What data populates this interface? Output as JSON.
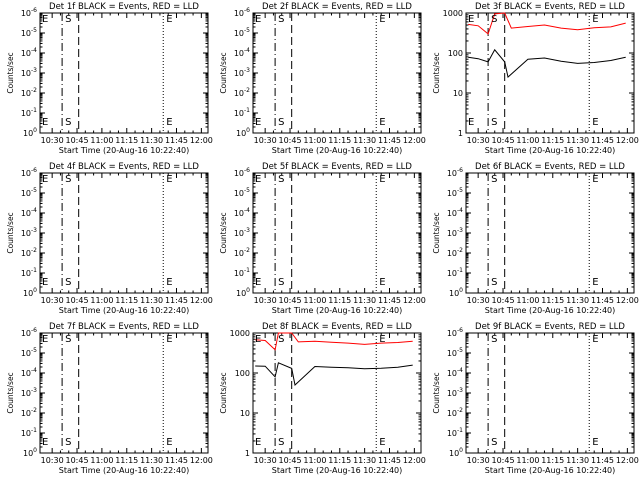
{
  "panel_titles": [
    "Det 1f BLACK = Events, RED = LLD",
    "Det 2f BLACK = Events, RED = LLD",
    "Det 3f BLACK = Events, RED = LLD",
    "Det 4f BLACK = Events, RED = LLD",
    "Det 5f BLACK = Events, RED = LLD",
    "Det 6f BLACK = Events, RED = LLD",
    "Det 7f BLACK = Events, RED = LLD",
    "Det 8f BLACK = Events, RED = LLD",
    "Det 9f BLACK = Events, RED = LLD"
  ],
  "chart_data": [
    {
      "panel": "Det 1f",
      "type": "line",
      "title": "Det 1f BLACK = Events, RED = LLD",
      "xlabel": "Start Time (20-Aug-16 10:22:40)",
      "ylabel": "Counts/sec",
      "yscale": "log",
      "ylim": [
        1,
        1e-06
      ],
      "ytick_labels": [
        "10^0",
        "10^-1",
        "10^-2",
        "10^-3",
        "10^-4",
        "10^-5",
        "10^-6"
      ],
      "xtick_labels": [
        "10:30",
        "10:45",
        "11:00",
        "11:15",
        "11:30",
        "11:45",
        "12:00"
      ],
      "markers": [
        {
          "label": "E",
          "time": "10:22:40"
        },
        {
          "label": "S",
          "time": "10:36"
        },
        {
          "label": "E",
          "time": "11:37"
        }
      ],
      "vlines": [
        {
          "time": "10:36",
          "style": "dash-dot"
        },
        {
          "time": "10:46",
          "style": "dashed"
        },
        {
          "time": "11:37",
          "style": "dotted"
        }
      ],
      "series": []
    },
    {
      "panel": "Det 2f",
      "type": "line",
      "title": "Det 2f BLACK = Events, RED = LLD",
      "xlabel": "Start Time (20-Aug-16 10:22:40)",
      "ylabel": "Counts/sec",
      "yscale": "log",
      "ylim": [
        1,
        1e-06
      ],
      "ytick_labels": [
        "10^0",
        "10^-1",
        "10^-2",
        "10^-3",
        "10^-4",
        "10^-5",
        "10^-6"
      ],
      "xtick_labels": [
        "10:30",
        "10:45",
        "11:00",
        "11:15",
        "11:30",
        "11:45",
        "12:00"
      ],
      "markers": [
        {
          "label": "E",
          "time": "10:22:40"
        },
        {
          "label": "S",
          "time": "10:36"
        },
        {
          "label": "E",
          "time": "11:37"
        }
      ],
      "vlines": [
        {
          "time": "10:36",
          "style": "dash-dot"
        },
        {
          "time": "10:46",
          "style": "dashed"
        },
        {
          "time": "11:37",
          "style": "dotted"
        }
      ],
      "series": []
    },
    {
      "panel": "Det 3f",
      "type": "line",
      "title": "Det 3f BLACK = Events, RED = LLD",
      "xlabel": "Start Time (20-Aug-16 10:22:40)",
      "ylabel": "Counts/sec",
      "yscale": "log",
      "ylim": [
        1,
        1000
      ],
      "ytick_labels": [
        "1",
        "10",
        "100",
        "1000"
      ],
      "xtick_labels": [
        "10:30",
        "10:45",
        "11:00",
        "11:15",
        "11:30",
        "11:45",
        "12:00"
      ],
      "markers": [
        {
          "label": "E",
          "time": "10:22:40"
        },
        {
          "label": "S",
          "time": "10:36"
        },
        {
          "label": "E",
          "time": "11:37"
        }
      ],
      "vlines": [
        {
          "time": "10:36",
          "style": "dash-dot"
        },
        {
          "time": "10:46",
          "style": "dashed"
        },
        {
          "time": "11:37",
          "style": "dotted"
        }
      ],
      "series": [
        {
          "name": "LLD",
          "color": "#ff0000",
          "x": [
            "10:24",
            "10:30",
            "10:36",
            "10:40",
            "10:46",
            "10:50",
            "11:00",
            "11:10",
            "11:20",
            "11:30",
            "11:40",
            "11:50",
            "11:59"
          ],
          "y": [
            520,
            480,
            300,
            950,
            1000,
            420,
            460,
            500,
            420,
            380,
            430,
            450,
            560
          ]
        },
        {
          "name": "Events",
          "color": "#000000",
          "x": [
            "10:24",
            "10:30",
            "10:36",
            "10:40",
            "10:46",
            "10:48",
            "11:00",
            "11:10",
            "11:20",
            "11:30",
            "11:40",
            "11:50",
            "11:59"
          ],
          "y": [
            78,
            72,
            60,
            120,
            60,
            25,
            70,
            75,
            62,
            55,
            58,
            65,
            78
          ]
        }
      ]
    },
    {
      "panel": "Det 4f",
      "type": "line",
      "title": "Det 4f BLACK = Events, RED = LLD",
      "xlabel": "Start Time (20-Aug-16 10:22:40)",
      "ylabel": "Counts/sec",
      "yscale": "log",
      "ylim": [
        1,
        1e-06
      ],
      "ytick_labels": [
        "10^0",
        "10^-1",
        "10^-2",
        "10^-3",
        "10^-4",
        "10^-5",
        "10^-6"
      ],
      "xtick_labels": [
        "10:30",
        "10:45",
        "11:00",
        "11:15",
        "11:30",
        "11:45",
        "12:00"
      ],
      "markers": [
        {
          "label": "E",
          "time": "10:22:40"
        },
        {
          "label": "S",
          "time": "10:36"
        },
        {
          "label": "E",
          "time": "11:37"
        }
      ],
      "vlines": [
        {
          "time": "10:36",
          "style": "dash-dot"
        },
        {
          "time": "10:46",
          "style": "dashed"
        },
        {
          "time": "11:37",
          "style": "dotted"
        }
      ],
      "series": []
    },
    {
      "panel": "Det 5f",
      "type": "line",
      "title": "Det 5f BLACK = Events, RED = LLD",
      "xlabel": "Start Time (20-Aug-16 10:22:40)",
      "ylabel": "Counts/sec",
      "yscale": "log",
      "ylim": [
        1,
        1e-06
      ],
      "ytick_labels": [
        "10^0",
        "10^-1",
        "10^-2",
        "10^-3",
        "10^-4",
        "10^-5",
        "10^-6"
      ],
      "xtick_labels": [
        "10:30",
        "10:45",
        "11:00",
        "11:15",
        "11:30",
        "11:45",
        "12:00"
      ],
      "markers": [
        {
          "label": "E",
          "time": "10:22:40"
        },
        {
          "label": "S",
          "time": "10:36"
        },
        {
          "label": "E",
          "time": "11:37"
        }
      ],
      "vlines": [
        {
          "time": "10:36",
          "style": "dash-dot"
        },
        {
          "time": "10:46",
          "style": "dashed"
        },
        {
          "time": "11:37",
          "style": "dotted"
        }
      ],
      "series": []
    },
    {
      "panel": "Det 6f",
      "type": "line",
      "title": "Det 6f BLACK = Events, RED = LLD",
      "xlabel": "Start Time (20-Aug-16 10:22:40)",
      "ylabel": "Counts/sec",
      "yscale": "log",
      "ylim": [
        1,
        1e-06
      ],
      "ytick_labels": [
        "10^0",
        "10^-1",
        "10^-2",
        "10^-3",
        "10^-4",
        "10^-5",
        "10^-6"
      ],
      "xtick_labels": [
        "10:30",
        "10:45",
        "11:00",
        "11:15",
        "11:30",
        "11:45",
        "12:00"
      ],
      "markers": [
        {
          "label": "S",
          "time": "10:36"
        },
        {
          "label": "E",
          "time": "11:37"
        }
      ],
      "vlines": [
        {
          "time": "10:36",
          "style": "dash-dot"
        },
        {
          "time": "10:46",
          "style": "dashed"
        },
        {
          "time": "11:37",
          "style": "dotted"
        }
      ],
      "series": []
    },
    {
      "panel": "Det 7f",
      "type": "line",
      "title": "Det 7f BLACK = Events, RED = LLD",
      "xlabel": "Start Time (20-Aug-16 10:22:40)",
      "ylabel": "Counts/sec",
      "yscale": "log",
      "ylim": [
        1,
        1e-06
      ],
      "ytick_labels": [
        "10^0",
        "10^-1",
        "10^-2",
        "10^-3",
        "10^-4",
        "10^-5",
        "10^-6"
      ],
      "xtick_labels": [
        "10:30",
        "10:45",
        "11:00",
        "11:15",
        "11:30",
        "11:45",
        "12:00"
      ],
      "markers": [
        {
          "label": "E",
          "time": "10:22:40"
        },
        {
          "label": "S",
          "time": "10:36"
        },
        {
          "label": "E",
          "time": "11:37"
        }
      ],
      "vlines": [
        {
          "time": "10:36",
          "style": "dash-dot"
        },
        {
          "time": "10:46",
          "style": "dashed"
        },
        {
          "time": "11:37",
          "style": "dotted"
        }
      ],
      "series": []
    },
    {
      "panel": "Det 8f",
      "type": "line",
      "title": "Det 8f BLACK = Events, RED = LLD",
      "xlabel": "Start Time (20-Aug-16 10:22:40)",
      "ylabel": "Counts/sec",
      "yscale": "log",
      "ylim": [
        1,
        1000
      ],
      "ytick_labels": [
        "1",
        "10",
        "100",
        "1000"
      ],
      "xtick_labels": [
        "10:30",
        "10:45",
        "11:00",
        "11:15",
        "11:30",
        "11:45",
        "12:00"
      ],
      "markers": [
        {
          "label": "E",
          "time": "10:22:40"
        },
        {
          "label": "S",
          "time": "10:36"
        },
        {
          "label": "E",
          "time": "11:37"
        }
      ],
      "vlines": [
        {
          "time": "10:36",
          "style": "dash-dot"
        },
        {
          "time": "10:46",
          "style": "dashed"
        },
        {
          "time": "11:37",
          "style": "dotted"
        }
      ],
      "series": [
        {
          "name": "LLD",
          "color": "#ff0000",
          "x": [
            "10:24",
            "10:30",
            "10:36",
            "10:38",
            "10:46",
            "10:50",
            "11:00",
            "11:10",
            "11:20",
            "11:30",
            "11:40",
            "11:50",
            "11:59"
          ],
          "y": [
            680,
            650,
            380,
            1000,
            1000,
            600,
            620,
            590,
            560,
            520,
            560,
            580,
            620
          ]
        },
        {
          "name": "Events",
          "color": "#000000",
          "x": [
            "10:24",
            "10:30",
            "10:36",
            "10:38",
            "10:46",
            "10:48",
            "11:00",
            "11:10",
            "11:20",
            "11:30",
            "11:40",
            "11:50",
            "11:59"
          ],
          "y": [
            150,
            148,
            80,
            180,
            130,
            50,
            145,
            140,
            135,
            128,
            132,
            140,
            158
          ]
        }
      ]
    },
    {
      "panel": "Det 9f",
      "type": "line",
      "title": "Det 9f BLACK = Events, RED = LLD",
      "xlabel": "Start Time (20-Aug-16 10:22:40)",
      "ylabel": "Counts/sec",
      "yscale": "log",
      "ylim": [
        1,
        1e-06
      ],
      "ytick_labels": [
        "10^0",
        "10^-1",
        "10^-2",
        "10^-3",
        "10^-4",
        "10^-5",
        "10^-6"
      ],
      "xtick_labels": [
        "10:30",
        "10:45",
        "11:00",
        "11:15",
        "11:30",
        "11:45",
        "12:00"
      ],
      "markers": [
        {
          "label": "S",
          "time": "10:36"
        },
        {
          "label": "E",
          "time": "11:37"
        }
      ],
      "vlines": [
        {
          "time": "10:36",
          "style": "dash-dot"
        },
        {
          "time": "10:46",
          "style": "dashed"
        },
        {
          "time": "11:37",
          "style": "dotted"
        }
      ],
      "series": []
    }
  ]
}
